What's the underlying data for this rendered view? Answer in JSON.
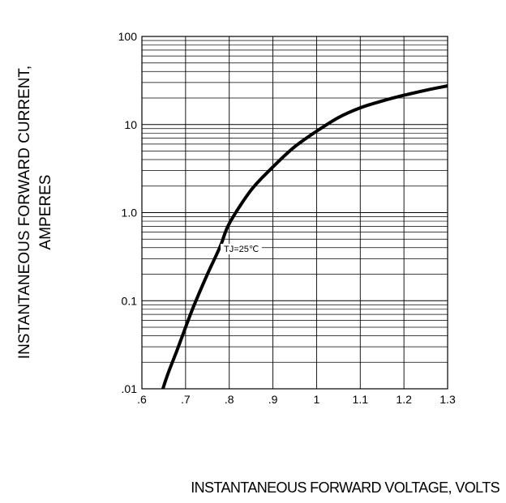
{
  "chart_data": {
    "type": "line",
    "title": "",
    "xlabel": "INSTANTANEOUS FORWARD VOLTAGE,  VOLTS",
    "ylabel_line1": "INSTANTANEOUS FORWARD CURRENT,",
    "ylabel_line2": "AMPERES",
    "x_scale": "linear",
    "y_scale": "log",
    "xlim": [
      0.6,
      1.3
    ],
    "ylim": [
      0.01,
      100
    ],
    "grid": true,
    "x_ticks": [
      ".6",
      ".7",
      ".8",
      ".9",
      "1",
      "1.1",
      "1.2",
      "1.3"
    ],
    "x_tick_values": [
      0.6,
      0.7,
      0.8,
      0.9,
      1.0,
      1.1,
      1.2,
      1.3
    ],
    "y_ticks": [
      ".01",
      "0.1",
      "1.0",
      "10",
      "100"
    ],
    "y_tick_values": [
      0.01,
      0.1,
      1,
      10,
      100
    ],
    "annotation": "TJ=25℃",
    "series": [
      {
        "x": [
          0.648,
          0.66,
          0.68,
          0.7,
          0.72,
          0.75,
          0.78,
          0.8,
          0.85,
          0.9,
          0.95,
          1.0,
          1.05,
          1.1,
          1.15,
          1.2,
          1.25,
          1.3
        ],
        "y": [
          0.01,
          0.015,
          0.027,
          0.05,
          0.09,
          0.2,
          0.42,
          0.75,
          1.8,
          3.3,
          5.6,
          8.4,
          12,
          15.5,
          18.5,
          21.5,
          24.5,
          27.5
        ]
      }
    ]
  }
}
